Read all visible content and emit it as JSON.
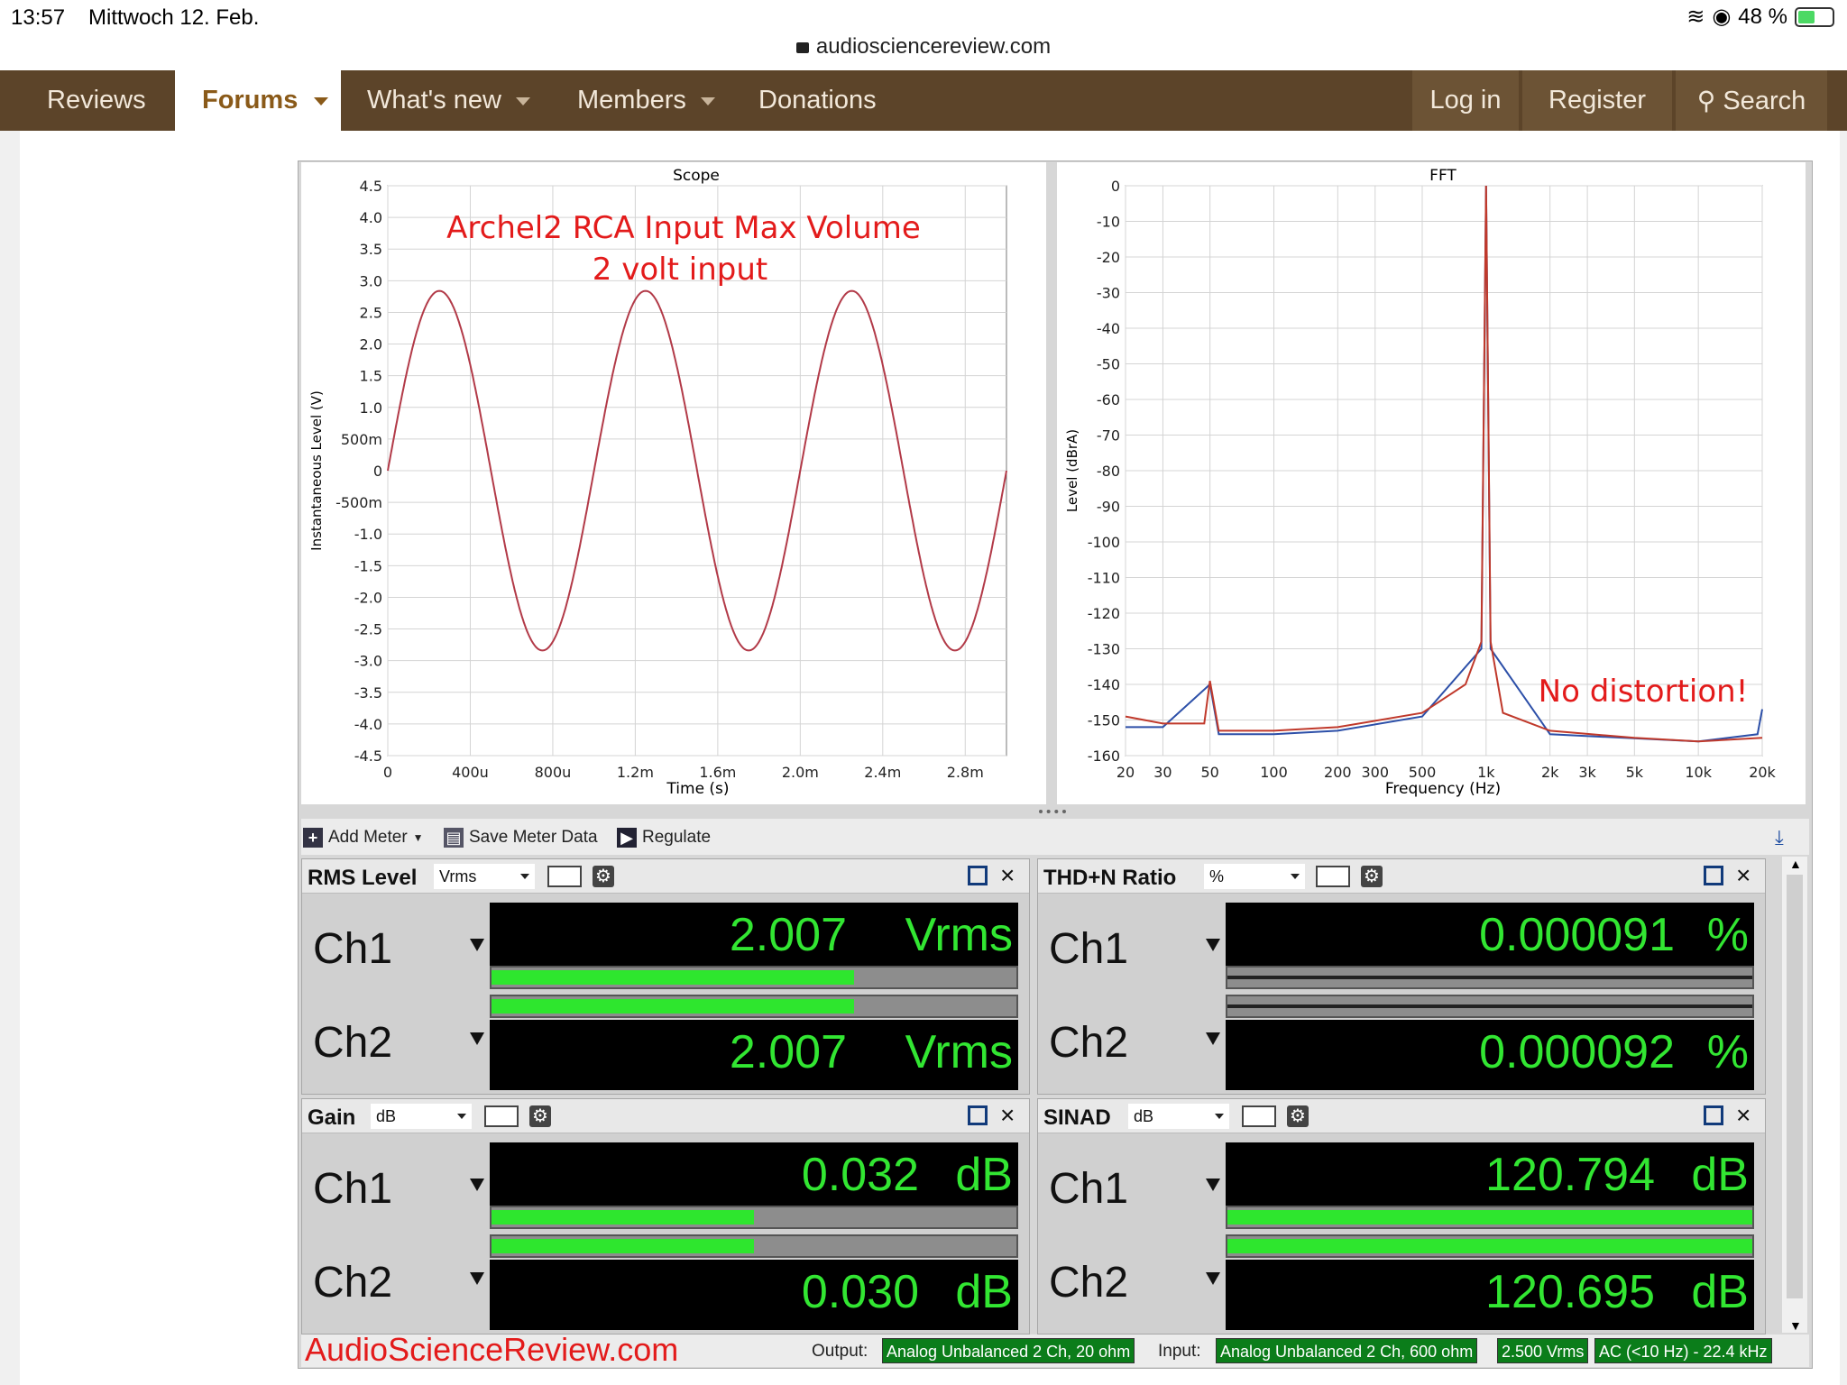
{
  "status_bar": {
    "time": "13:57",
    "date": "Mittwoch 12. Feb.",
    "battery": "48 %"
  },
  "browser": {
    "url": "audiosciencereview.com"
  },
  "nav": {
    "left": [
      "Reviews",
      "Forums",
      "What's new",
      "Members",
      "Donations"
    ],
    "active": "Forums",
    "right": [
      "Log in",
      "Register",
      "Search"
    ]
  },
  "scope": {
    "title": "Scope",
    "annotation_line1": "Archel2 RCA Input Max Volume",
    "annotation_line2": "2 volt input",
    "xlabel": "Time (s)",
    "ylabel": "Instantaneous Level (V)"
  },
  "fft": {
    "title": "FFT",
    "annotation": "No distortion!",
    "xlabel": "Frequency (Hz)",
    "ylabel": "Level (dBrA)"
  },
  "chart_data": [
    {
      "type": "line",
      "title": "Scope",
      "xlabel": "Time (s)",
      "ylabel": "Instantaneous Level (V)",
      "xlim": [
        0,
        0.003
      ],
      "ylim": [
        -4.5,
        4.5
      ],
      "x_ticks": [
        "0",
        "400u",
        "800u",
        "1.2m",
        "1.6m",
        "2.0m",
        "2.4m",
        "2.8m"
      ],
      "y_ticks": [
        "4.5",
        "4.0",
        "3.5",
        "3.0",
        "2.5",
        "2.0",
        "1.5",
        "1.0",
        "500m",
        "0",
        "-500m",
        "-1.0",
        "-1.5",
        "-2.0",
        "-2.5",
        "-3.0",
        "-3.5",
        "-4.0",
        "-4.5"
      ],
      "series": [
        {
          "amplitude_v": 2.84,
          "frequency_hz": 1000,
          "color": "#b23a48"
        }
      ],
      "grid": true
    },
    {
      "type": "line",
      "title": "FFT",
      "xlabel": "Frequency (Hz)",
      "ylabel": "Level (dBrA)",
      "x_scale": "log",
      "xlim": [
        20,
        20000
      ],
      "ylim": [
        -160,
        0
      ],
      "x_ticks": [
        "20",
        "30",
        "50",
        "100",
        "200",
        "300",
        "500",
        "1k",
        "2k",
        "3k",
        "5k",
        "10k",
        "20k"
      ],
      "y_ticks": [
        "0",
        "-10",
        "-20",
        "-30",
        "-40",
        "-50",
        "-60",
        "-70",
        "-80",
        "-90",
        "-100",
        "-110",
        "-120",
        "-130",
        "-140",
        "-150",
        "-160"
      ],
      "series": [
        {
          "color": "#c0392b",
          "points": [
            [
              20,
              -149
            ],
            [
              30,
              -151
            ],
            [
              47,
              -151
            ],
            [
              50,
              -139
            ],
            [
              55,
              -153
            ],
            [
              100,
              -153
            ],
            [
              200,
              -152
            ],
            [
              500,
              -148
            ],
            [
              800,
              -140
            ],
            [
              950,
              -128
            ],
            [
              1000,
              0
            ],
            [
              1050,
              -128
            ],
            [
              1200,
              -148
            ],
            [
              2000,
              -153
            ],
            [
              5000,
              -155
            ],
            [
              10000,
              -156
            ],
            [
              20000,
              -155
            ]
          ]
        },
        {
          "color": "#2c4fa8",
          "points": [
            [
              20,
              -152
            ],
            [
              30,
              -152
            ],
            [
              50,
              -140
            ],
            [
              55,
              -154
            ],
            [
              100,
              -154
            ],
            [
              200,
              -153
            ],
            [
              500,
              -149
            ],
            [
              950,
              -130
            ],
            [
              1000,
              0
            ],
            [
              1050,
              -130
            ],
            [
              2000,
              -154
            ],
            [
              10000,
              -156
            ],
            [
              19000,
              -154
            ],
            [
              20000,
              -147
            ]
          ]
        }
      ],
      "grid": true
    }
  ],
  "toolbar": {
    "add_meter": "Add Meter",
    "save_meter_data": "Save Meter Data",
    "regulate": "Regulate"
  },
  "meters": {
    "rms": {
      "title": "RMS Level",
      "unit_select": "Vrms",
      "ch1_label": "Ch1",
      "ch2_label": "Ch2",
      "ch1_value": "2.007",
      "ch2_value": "2.007",
      "unit": "Vrms",
      "ch1_fill": 0.69,
      "ch2_fill": 0.69
    },
    "thdn": {
      "title": "THD+N Ratio",
      "unit_select": "%",
      "ch1_label": "Ch1",
      "ch2_label": "Ch2",
      "ch1_value": "0.000091",
      "ch2_value": "0.000092",
      "unit": "%",
      "ch1_fill": 0.0,
      "ch2_fill": 0.0
    },
    "gain": {
      "title": "Gain",
      "unit_select": "dB",
      "ch1_label": "Ch1",
      "ch2_label": "Ch2",
      "ch1_value": "0.032",
      "ch2_value": "0.030",
      "unit": "dB",
      "ch1_fill": 0.5,
      "ch2_fill": 0.5
    },
    "sinad": {
      "title": "SINAD",
      "unit_select": "dB",
      "ch1_label": "Ch1",
      "ch2_label": "Ch2",
      "ch1_value": "120.794",
      "ch2_value": "120.695",
      "unit": "dB",
      "ch1_fill": 1.0,
      "ch2_fill": 1.0
    }
  },
  "status_line": {
    "watermark": "AudioScienceReview.com",
    "output_label": "Output:",
    "output_value": "Analog Unbalanced 2 Ch, 20 ohm",
    "input_label": "Input:",
    "input_value": "Analog Unbalanced 2 Ch, 600 ohm",
    "level": "2.500 Vrms",
    "filter": "AC (<10 Hz) - 22.4 kHz"
  }
}
